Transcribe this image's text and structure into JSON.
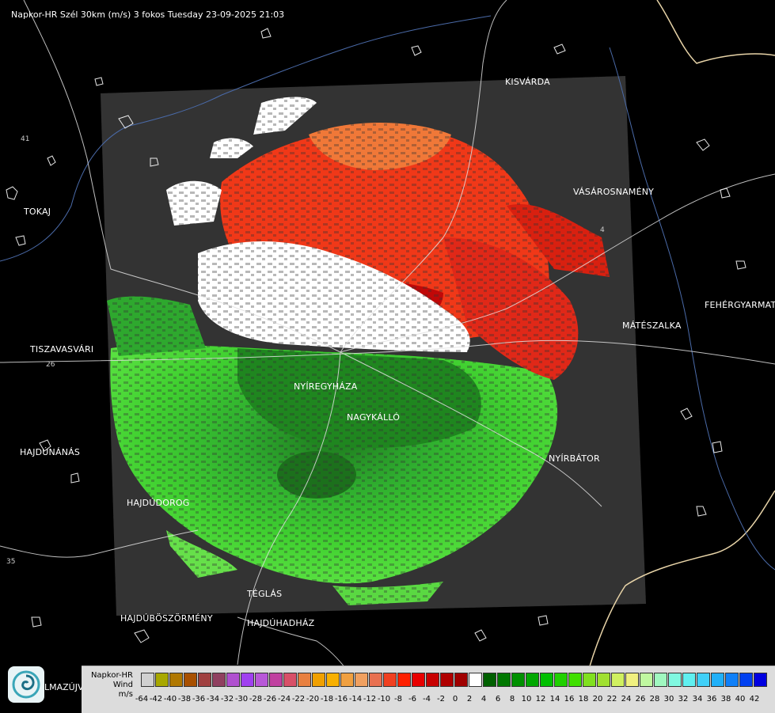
{
  "header": {
    "title": "Napkor-HR Szél 30km (m/s) 3 fokos Tuesday 23-09-2025 21:03"
  },
  "cities": [
    {
      "id": "kisvarda",
      "label": "KISVÁRDA"
    },
    {
      "id": "tokaj",
      "label": "TOKAJ"
    },
    {
      "id": "vasarosnameny",
      "label": "VÁSÁROSNAMÉNY"
    },
    {
      "id": "fehergyarmat",
      "label": "FEHÉRGYARMAT"
    },
    {
      "id": "tiszavasvari",
      "label": "TISZAVASVÁRI"
    },
    {
      "id": "mateszalka",
      "label": "MÁTÉSZALKA"
    },
    {
      "id": "nyiregyhaza",
      "label": "NYÍREGYHÁZA"
    },
    {
      "id": "nagykallo",
      "label": "NAGYKÁLLÓ"
    },
    {
      "id": "hajdunanas",
      "label": "HAJDÚNÁNÁS"
    },
    {
      "id": "nyirbator",
      "label": "NYÍRBÁTOR"
    },
    {
      "id": "hajdudorog",
      "label": "HAJDÚDOROG"
    },
    {
      "id": "teglas",
      "label": "TÉGLÁS"
    },
    {
      "id": "hajduboszormeny",
      "label": "HAJDÚBÖSZÖRMÉNY"
    },
    {
      "id": "hajduhadhaz",
      "label": "HAJDÚHADHÁZ"
    },
    {
      "id": "almazujvaros",
      "label": "LMAZÚJVÁR"
    }
  ],
  "roads": [
    "26",
    "4",
    "35",
    "41"
  ],
  "legend": {
    "product": "Napkor-HR",
    "quantity": "Wind",
    "unit": "m/s",
    "ticks": [
      "-64",
      "-42",
      "-40",
      "-38",
      "-36",
      "-34",
      "-32",
      "-30",
      "-28",
      "-26",
      "-24",
      "-22",
      "-20",
      "-18",
      "-16",
      "-14",
      "-12",
      "-10",
      "-8",
      "-6",
      "-4",
      "-2",
      "0",
      "2",
      "4",
      "6",
      "8",
      "10",
      "12",
      "14",
      "16",
      "18",
      "20",
      "22",
      "24",
      "26",
      "28",
      "30",
      "32",
      "34",
      "36",
      "38",
      "40",
      "42"
    ],
    "colors": [
      "#d0d0d0",
      "#a8a800",
      "#b07800",
      "#a85000",
      "#a04040",
      "#904060",
      "#b050d0",
      "#a040f0",
      "#b858d8",
      "#c040a0",
      "#d85068",
      "#e88040",
      "#f0a000",
      "#f8b000",
      "#f0a040",
      "#f0a060",
      "#e87050",
      "#f04020",
      "#ff2000",
      "#e80000",
      "#c80000",
      "#b00000",
      "#a00000",
      "#ffffff",
      "#006000",
      "#007800",
      "#009000",
      "#00a800",
      "#00c000",
      "#20d000",
      "#40e000",
      "#80e020",
      "#a0e030",
      "#d0f060",
      "#f0f080",
      "#c0f8a0",
      "#a0f8c0",
      "#80f8e0",
      "#60f0f0",
      "#40d0f8",
      "#20b0f8",
      "#1080f8",
      "#0040f0",
      "#0000e0"
    ]
  }
}
